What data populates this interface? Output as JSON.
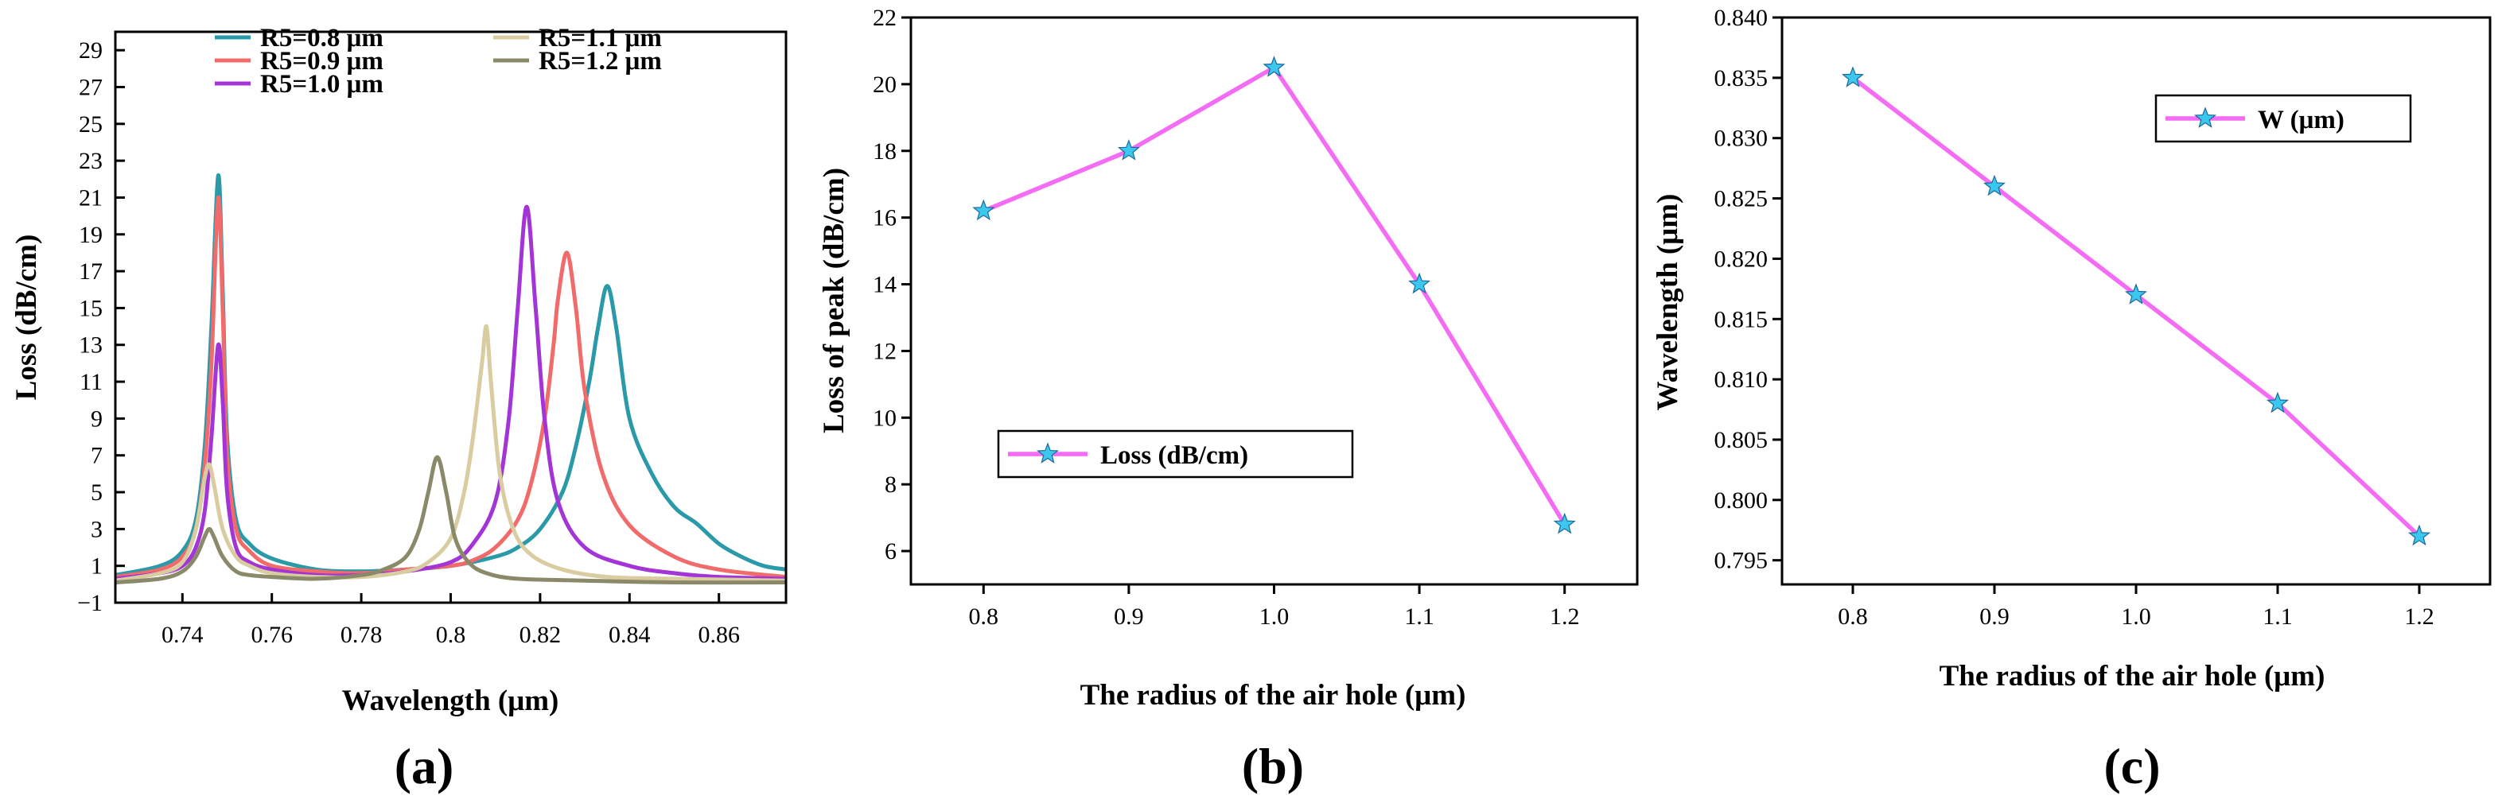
{
  "figure_panels": [
    "(a)",
    "(b)",
    "(c)"
  ],
  "chart_data": [
    {
      "type": "line",
      "panel_label": "(a)",
      "title": "",
      "xlabel": "Wavelength (μm)",
      "ylabel": "Loss (dB/cm)",
      "xlim": [
        0.725,
        0.875
      ],
      "ylim": [
        -1,
        30
      ],
      "x_ticks": [
        0.74,
        0.76,
        0.78,
        0.8,
        0.82,
        0.84,
        0.86
      ],
      "x_tick_labels": [
        "0.74",
        "0.76",
        "0.78",
        "0.8",
        "0.82",
        "0.84",
        "0.86"
      ],
      "y_ticks": [
        -1,
        1,
        3,
        5,
        7,
        9,
        11,
        13,
        15,
        17,
        19,
        21,
        23,
        25,
        27,
        29
      ],
      "y_tick_labels": [
        "−1",
        "1",
        "3",
        "5",
        "7",
        "9",
        "11",
        "13",
        "15",
        "17",
        "19",
        "21",
        "23",
        "25",
        "27",
        "29"
      ],
      "legend_position": "top-left",
      "series": [
        {
          "name": "R5=0.8 μm",
          "color": "#2a9aa8",
          "x": [
            0.725,
            0.735,
            0.74,
            0.743,
            0.745,
            0.7465,
            0.748,
            0.749,
            0.75,
            0.752,
            0.755,
            0.76,
            0.77,
            0.78,
            0.79,
            0.8,
            0.81,
            0.815,
            0.82,
            0.825,
            0.828,
            0.831,
            0.833,
            0.835,
            0.837,
            0.84,
            0.845,
            0.85,
            0.855,
            0.86,
            0.865,
            0.87,
            0.875
          ],
          "y": [
            0.5,
            1.0,
            1.8,
            3.5,
            7.5,
            14.0,
            22.2,
            16.0,
            8.0,
            3.5,
            2.2,
            1.4,
            0.8,
            0.7,
            0.8,
            1.0,
            1.5,
            2.0,
            3.0,
            5.0,
            7.5,
            11.0,
            14.0,
            16.2,
            14.0,
            9.0,
            6.0,
            4.2,
            3.3,
            2.2,
            1.5,
            1.0,
            0.8
          ]
        },
        {
          "name": "R5=0.9 μm",
          "color": "#f26b6b",
          "x": [
            0.725,
            0.735,
            0.74,
            0.743,
            0.745,
            0.7465,
            0.748,
            0.749,
            0.75,
            0.752,
            0.755,
            0.76,
            0.77,
            0.78,
            0.79,
            0.8,
            0.805,
            0.81,
            0.815,
            0.818,
            0.821,
            0.823,
            0.824,
            0.826,
            0.828,
            0.83,
            0.834,
            0.84,
            0.85,
            0.86,
            0.875
          ],
          "y": [
            0.4,
            0.8,
            1.5,
            3.0,
            6.5,
            12.0,
            21.0,
            15.0,
            7.0,
            3.0,
            1.8,
            1.0,
            0.7,
            0.6,
            0.8,
            1.0,
            1.3,
            2.0,
            3.5,
            5.5,
            9.0,
            13.0,
            15.5,
            18.0,
            15.0,
            10.5,
            6.0,
            3.2,
            1.5,
            0.8,
            0.4
          ]
        },
        {
          "name": "R5=1.0 μm",
          "color": "#a335d6",
          "x": [
            0.725,
            0.735,
            0.74,
            0.743,
            0.745,
            0.7465,
            0.748,
            0.749,
            0.75,
            0.752,
            0.755,
            0.76,
            0.77,
            0.78,
            0.79,
            0.8,
            0.805,
            0.81,
            0.813,
            0.815,
            0.817,
            0.819,
            0.821,
            0.824,
            0.83,
            0.84,
            0.85,
            0.86,
            0.875
          ],
          "y": [
            0.3,
            0.6,
            1.0,
            2.0,
            4.0,
            8.0,
            13.0,
            10.0,
            5.0,
            2.0,
            1.2,
            0.8,
            0.5,
            0.5,
            0.7,
            1.2,
            2.2,
            4.5,
            9.0,
            15.0,
            20.5,
            15.0,
            9.0,
            4.5,
            2.0,
            1.0,
            0.6,
            0.4,
            0.3
          ]
        },
        {
          "name": "R5=1.1 μm",
          "color": "#d9cca0",
          "x": [
            0.725,
            0.735,
            0.74,
            0.743,
            0.745,
            0.746,
            0.747,
            0.749,
            0.752,
            0.755,
            0.76,
            0.77,
            0.78,
            0.79,
            0.795,
            0.8,
            0.803,
            0.805,
            0.807,
            0.808,
            0.809,
            0.811,
            0.814,
            0.818,
            0.825,
            0.835,
            0.85,
            0.875
          ],
          "y": [
            0.2,
            0.6,
            1.2,
            3.0,
            5.8,
            6.5,
            5.5,
            3.0,
            1.5,
            1.0,
            0.6,
            0.4,
            0.4,
            0.7,
            1.2,
            2.5,
            5.0,
            8.0,
            12.0,
            14.0,
            11.0,
            6.0,
            3.0,
            1.6,
            0.8,
            0.4,
            0.3,
            0.2
          ]
        },
        {
          "name": "R5=1.2 μm",
          "color": "#8a8a6a",
          "x": [
            0.725,
            0.735,
            0.74,
            0.743,
            0.745,
            0.746,
            0.747,
            0.749,
            0.752,
            0.755,
            0.76,
            0.77,
            0.78,
            0.785,
            0.79,
            0.793,
            0.795,
            0.797,
            0.799,
            0.801,
            0.804,
            0.808,
            0.815,
            0.83,
            0.85,
            0.875
          ],
          "y": [
            0.1,
            0.3,
            0.7,
            1.5,
            2.6,
            3.0,
            2.6,
            1.5,
            0.7,
            0.5,
            0.4,
            0.3,
            0.5,
            0.8,
            1.5,
            3.0,
            5.0,
            6.9,
            5.0,
            2.5,
            1.2,
            0.6,
            0.3,
            0.2,
            0.1,
            0.1
          ]
        }
      ]
    },
    {
      "type": "line",
      "panel_label": "(b)",
      "title": "",
      "xlabel": "The radius of the air hole (μm)",
      "ylabel": "Loss of peak (dB/cm)",
      "xlim": [
        0.75,
        1.25
      ],
      "ylim": [
        5,
        22
      ],
      "x_ticks": [
        0.8,
        0.9,
        1.0,
        1.1,
        1.2
      ],
      "x_tick_labels": [
        "0.8",
        "0.9",
        "1.0",
        "1.1",
        "1.2"
      ],
      "y_ticks": [
        6,
        8,
        10,
        12,
        14,
        16,
        18,
        20,
        22
      ],
      "y_tick_labels": [
        "6",
        "8",
        "10",
        "12",
        "14",
        "16",
        "18",
        "20",
        "22"
      ],
      "legend_position": "center-left",
      "series": [
        {
          "name": "Loss (dB/cm)",
          "color": "#f46cf4",
          "marker_color": "#3cc8ee",
          "x": [
            0.8,
            0.9,
            1.0,
            1.1,
            1.2
          ],
          "y": [
            16.2,
            18.0,
            20.5,
            14.0,
            6.8
          ]
        }
      ]
    },
    {
      "type": "line",
      "panel_label": "(c)",
      "title": "",
      "xlabel": "The radius of the air hole (μm)",
      "ylabel": "Wavelength (μm)",
      "xlim": [
        0.75,
        1.25
      ],
      "ylim": [
        0.793,
        0.84
      ],
      "x_ticks": [
        0.8,
        0.9,
        1.0,
        1.1,
        1.2
      ],
      "x_tick_labels": [
        "0.8",
        "0.9",
        "1.0",
        "1.1",
        "1.2"
      ],
      "y_ticks": [
        0.795,
        0.8,
        0.805,
        0.81,
        0.815,
        0.82,
        0.825,
        0.83,
        0.835,
        0.84
      ],
      "y_tick_labels": [
        "0.795",
        "0.800",
        "0.805",
        "0.810",
        "0.815",
        "0.820",
        "0.825",
        "0.830",
        "0.835",
        "0.840"
      ],
      "legend_position": "top-right",
      "series": [
        {
          "name": "W (μm)",
          "color": "#f46cf4",
          "marker_color": "#3cc8ee",
          "x": [
            0.8,
            0.9,
            1.0,
            1.1,
            1.2
          ],
          "y": [
            0.835,
            0.826,
            0.817,
            0.808,
            0.797
          ]
        }
      ]
    }
  ]
}
